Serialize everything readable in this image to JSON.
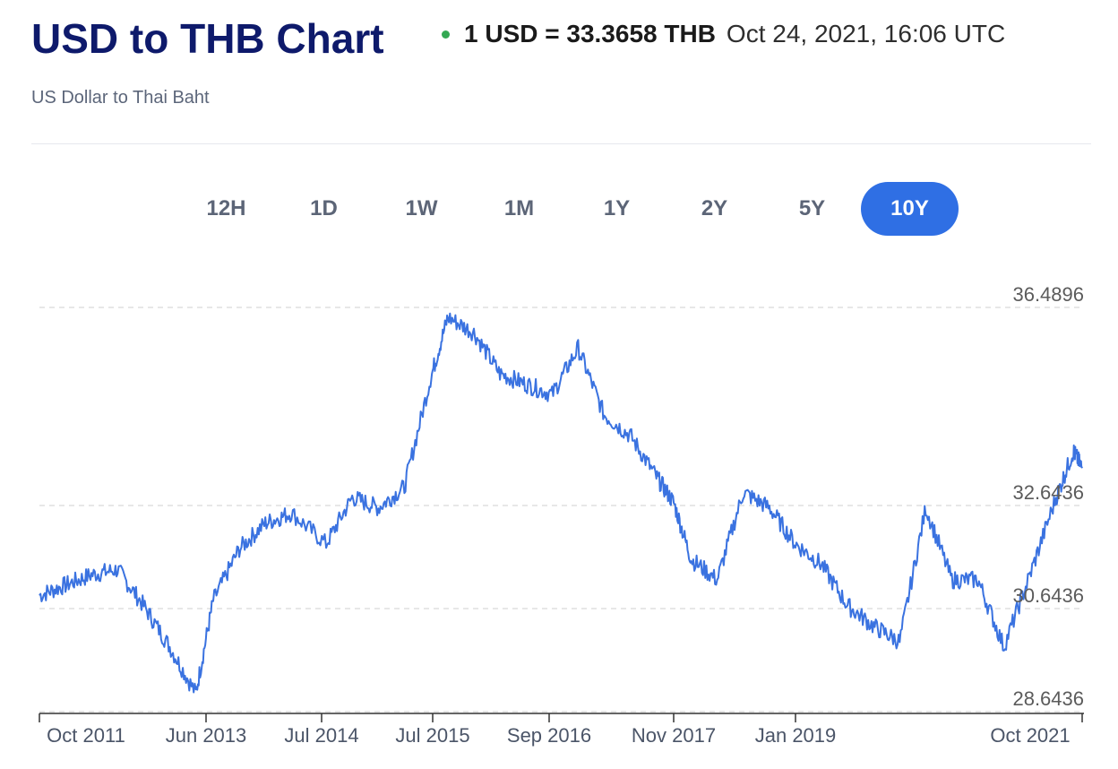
{
  "header": {
    "title": "USD to THB Chart",
    "subtitle": "US Dollar to Thai Baht",
    "rate": "1 USD = 33.3658 THB",
    "timestamp": "Oct 24, 2021, 16:06 UTC",
    "status_color": "#34a853"
  },
  "tabs": [
    {
      "label": "12H",
      "active": false
    },
    {
      "label": "1D",
      "active": false
    },
    {
      "label": "1W",
      "active": false
    },
    {
      "label": "1M",
      "active": false
    },
    {
      "label": "1Y",
      "active": false
    },
    {
      "label": "2Y",
      "active": false
    },
    {
      "label": "5Y",
      "active": false
    },
    {
      "label": "10Y",
      "active": true
    }
  ],
  "colors": {
    "line": "#3a72e0",
    "accent": "#2f6fe4",
    "title": "#0e1a6b"
  },
  "chart_data": {
    "type": "line",
    "series": [
      {
        "x": [
          "2011-10",
          "2012-01",
          "2012-04",
          "2012-07",
          "2012-10",
          "2013-01",
          "2013-04",
          "2013-06",
          "2013-09",
          "2013-12",
          "2014-03",
          "2014-07",
          "2014-10",
          "2015-01",
          "2015-04",
          "2015-07",
          "2015-09",
          "2015-12",
          "2016-03",
          "2016-06",
          "2016-09",
          "2016-12",
          "2017-03",
          "2017-06",
          "2017-09",
          "2017-11",
          "2018-01",
          "2018-04",
          "2018-07",
          "2018-10",
          "2019-01",
          "2019-04",
          "2019-07",
          "2019-10",
          "2020-01",
          "2020-04",
          "2020-07",
          "2020-10",
          "2021-01",
          "2021-04",
          "2021-07",
          "2021-09",
          "2021-10"
        ],
        "y": [
          30.9,
          31.1,
          31.3,
          31.4,
          30.7,
          29.9,
          29.0,
          30.8,
          31.8,
          32.3,
          32.5,
          31.9,
          32.8,
          32.6,
          33.0,
          35.1,
          36.3,
          36.0,
          35.2,
          35.0,
          34.8,
          35.7,
          34.4,
          34.0,
          33.2,
          32.7,
          31.6,
          31.2,
          32.9,
          32.6,
          31.9,
          31.5,
          30.7,
          30.3,
          30.0,
          32.6,
          31.2,
          31.2,
          29.9,
          31.3,
          32.8,
          33.7,
          33.37
        ]
      }
    ],
    "y_ticks": [
      "36.4896",
      "32.6436",
      "30.6436",
      "28.6436"
    ],
    "x_ticks": [
      "Oct 2011",
      "Jun 2013",
      "Jul 2014",
      "Jul 2015",
      "Sep 2016",
      "Nov 2017",
      "Jan 2019",
      "Oct 2021"
    ],
    "ylim": [
      28.6436,
      36.4896
    ],
    "grid": true
  }
}
